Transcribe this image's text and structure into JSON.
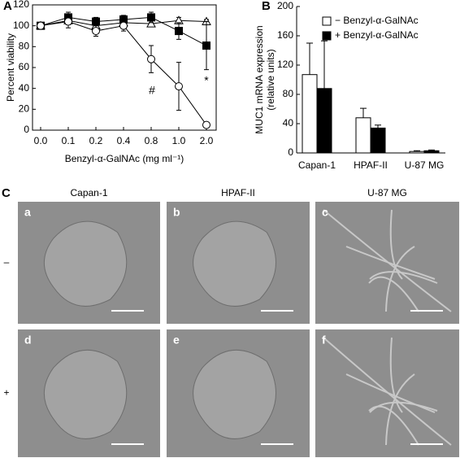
{
  "chart_data": [
    {
      "type": "line",
      "panel_label": "A",
      "y_label": "Percent viability",
      "x_label": "Benzyl-α-GalNAc (mg ml⁻¹)",
      "categories": [
        "0.0",
        "0.1",
        "0.2",
        "0.4",
        "0.8",
        "1.0",
        "2.0"
      ],
      "ylim": [
        0,
        120
      ],
      "yticks": [
        0,
        20,
        40,
        60,
        80,
        100,
        120
      ],
      "series": [
        {
          "marker": "triangle",
          "fill": "#ffffff",
          "color": "#000000",
          "values": [
            100,
            105,
            100,
            103,
            102,
            105,
            104
          ],
          "errors": [
            2,
            4,
            3,
            3,
            3,
            3,
            2
          ]
        },
        {
          "marker": "square",
          "fill": "#000000",
          "color": "#000000",
          "values": [
            100,
            108,
            104,
            106,
            108,
            95,
            81
          ],
          "errors": [
            2,
            5,
            4,
            4,
            5,
            8,
            23
          ]
        },
        {
          "marker": "circle",
          "fill": "#ffffff",
          "color": "#000000",
          "values": [
            100,
            104,
            95,
            100,
            68,
            42,
            5
          ],
          "errors": [
            2,
            6,
            5,
            5,
            13,
            23,
            2
          ]
        }
      ],
      "annotations": [
        "#",
        "*"
      ]
    },
    {
      "type": "bar",
      "panel_label": "B",
      "y_label": [
        "MUC1 mRNA expression",
        "(relative units)"
      ],
      "categories": [
        "Capan-1",
        "HPAF-II",
        "U-87 MG"
      ],
      "ylim": [
        0,
        200
      ],
      "yticks": [
        0,
        40,
        80,
        120,
        160,
        200
      ],
      "legend": "upper right",
      "series": [
        {
          "name": "− Benzyl-α-GalNAc",
          "color": "#ffffff",
          "values": [
            107,
            48,
            2
          ],
          "errors": [
            43,
            13,
            1
          ]
        },
        {
          "name": "+ Benzyl-α-GalNAc",
          "color": "#000000",
          "values": [
            88,
            34,
            3
          ],
          "errors": [
            65,
            4,
            1
          ]
        }
      ]
    }
  ],
  "panel_c": {
    "panel_label": "C",
    "columns": [
      "Capan-1",
      "HPAF-II",
      "U-87 MG"
    ],
    "rows": [
      "–",
      "+"
    ],
    "panels": [
      "a",
      "b",
      "c",
      "d",
      "e",
      "f"
    ]
  }
}
